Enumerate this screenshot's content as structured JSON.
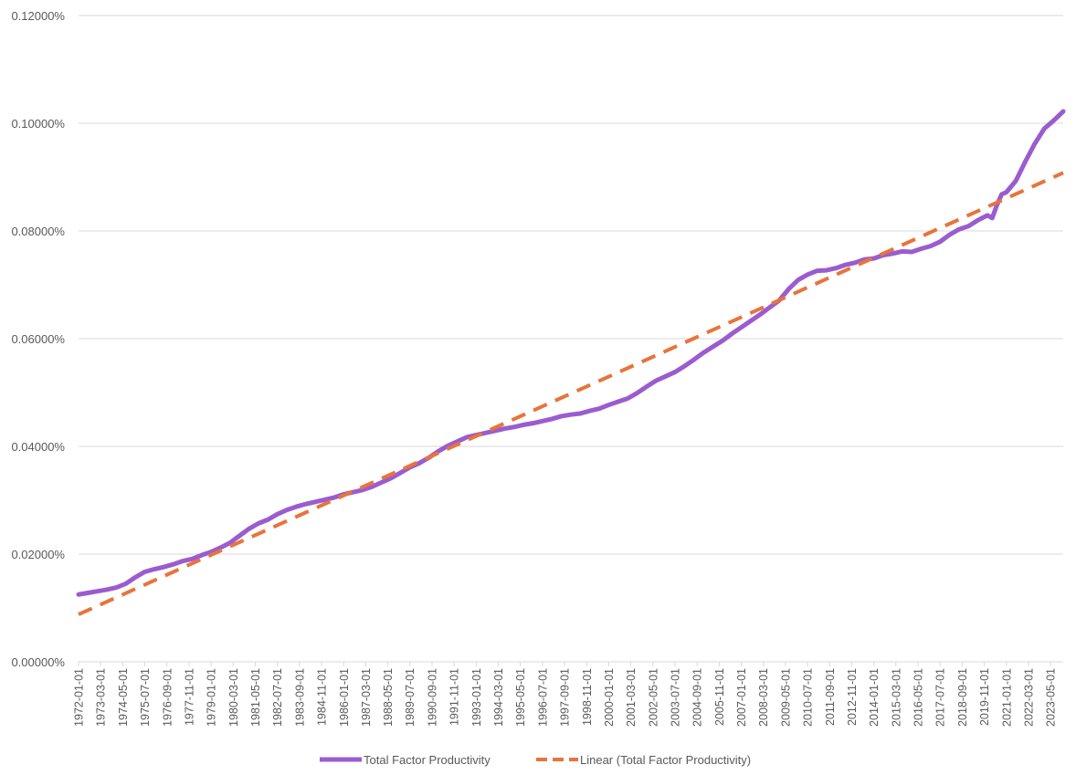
{
  "chart_data": {
    "type": "line",
    "title": "",
    "xlabel": "",
    "ylabel": "",
    "x_start": "1972-01-01",
    "x_end": "2024-01-01",
    "ylim": [
      0.0,
      0.12
    ],
    "grid": true,
    "legend_position": "bottom",
    "y_ticks": [
      "0.00000%",
      "0.02000%",
      "0.04000%",
      "0.06000%",
      "0.08000%",
      "0.10000%",
      "0.12000%"
    ],
    "y_tick_values": [
      0.0,
      0.02,
      0.04,
      0.06,
      0.08,
      0.1,
      0.12
    ],
    "x_ticks": [
      "1972-01-01",
      "1973-03-01",
      "1974-05-01",
      "1975-07-01",
      "1976-09-01",
      "1977-11-01",
      "1979-01-01",
      "1980-03-01",
      "1981-05-01",
      "1982-07-01",
      "1983-09-01",
      "1984-11-01",
      "1986-01-01",
      "1987-03-01",
      "1988-05-01",
      "1989-07-01",
      "1990-09-01",
      "1991-11-01",
      "1993-01-01",
      "1994-03-01",
      "1995-05-01",
      "1996-07-01",
      "1997-09-01",
      "1998-11-01",
      "2000-01-01",
      "2001-03-01",
      "2002-05-01",
      "2003-07-01",
      "2004-09-01",
      "2005-11-01",
      "2007-01-01",
      "2008-03-01",
      "2009-05-01",
      "2010-07-01",
      "2011-09-01",
      "2012-11-01",
      "2014-01-01",
      "2015-03-01",
      "2016-05-01",
      "2017-07-01",
      "2018-09-01",
      "2019-11-01",
      "2021-01-01",
      "2022-03-01",
      "2023-05-01"
    ],
    "series": [
      {
        "name": "Total Factor Productivity",
        "color": "#9a5ccf",
        "style": "solid",
        "points": [
          [
            "1972-01-01",
            0.0125
          ],
          [
            "1972-07-01",
            0.0128
          ],
          [
            "1973-01-01",
            0.0131
          ],
          [
            "1973-07-01",
            0.0134
          ],
          [
            "1974-01-01",
            0.0138
          ],
          [
            "1974-07-01",
            0.0145
          ],
          [
            "1975-01-01",
            0.0157
          ],
          [
            "1975-07-01",
            0.0167
          ],
          [
            "1976-01-01",
            0.0172
          ],
          [
            "1976-07-01",
            0.0176
          ],
          [
            "1977-01-01",
            0.0181
          ],
          [
            "1977-07-01",
            0.0187
          ],
          [
            "1978-01-01",
            0.0191
          ],
          [
            "1978-07-01",
            0.0198
          ],
          [
            "1979-01-01",
            0.0204
          ],
          [
            "1979-07-01",
            0.0212
          ],
          [
            "1980-01-01",
            0.0221
          ],
          [
            "1980-07-01",
            0.0234
          ],
          [
            "1981-01-01",
            0.0247
          ],
          [
            "1981-07-01",
            0.0257
          ],
          [
            "1982-01-01",
            0.0264
          ],
          [
            "1982-07-01",
            0.0274
          ],
          [
            "1983-01-01",
            0.0282
          ],
          [
            "1983-07-01",
            0.0288
          ],
          [
            "1984-01-01",
            0.0293
          ],
          [
            "1984-07-01",
            0.0297
          ],
          [
            "1985-01-01",
            0.0301
          ],
          [
            "1985-07-01",
            0.0305
          ],
          [
            "1986-01-01",
            0.0311
          ],
          [
            "1986-07-01",
            0.0315
          ],
          [
            "1987-01-01",
            0.0319
          ],
          [
            "1987-07-01",
            0.0325
          ],
          [
            "1988-01-01",
            0.0333
          ],
          [
            "1988-07-01",
            0.0341
          ],
          [
            "1989-01-01",
            0.0351
          ],
          [
            "1989-07-01",
            0.0361
          ],
          [
            "1990-01-01",
            0.0369
          ],
          [
            "1990-07-01",
            0.0379
          ],
          [
            "1991-01-01",
            0.0391
          ],
          [
            "1991-07-01",
            0.0401
          ],
          [
            "1992-01-01",
            0.0409
          ],
          [
            "1992-07-01",
            0.0417
          ],
          [
            "1993-01-01",
            0.0421
          ],
          [
            "1993-07-01",
            0.0425
          ],
          [
            "1994-01-01",
            0.0429
          ],
          [
            "1994-07-01",
            0.0433
          ],
          [
            "1995-01-01",
            0.0436
          ],
          [
            "1995-07-01",
            0.044
          ],
          [
            "1996-01-01",
            0.0443
          ],
          [
            "1996-07-01",
            0.0447
          ],
          [
            "1997-01-01",
            0.0451
          ],
          [
            "1997-07-01",
            0.0456
          ],
          [
            "1998-01-01",
            0.0459
          ],
          [
            "1998-07-01",
            0.0461
          ],
          [
            "1999-01-01",
            0.0466
          ],
          [
            "1999-07-01",
            0.047
          ],
          [
            "2000-01-01",
            0.0477
          ],
          [
            "2000-07-01",
            0.0483
          ],
          [
            "2001-01-01",
            0.0489
          ],
          [
            "2001-07-01",
            0.0499
          ],
          [
            "2002-01-01",
            0.0511
          ],
          [
            "2002-07-01",
            0.0522
          ],
          [
            "2003-01-01",
            0.053
          ],
          [
            "2003-07-01",
            0.0538
          ],
          [
            "2004-01-01",
            0.0549
          ],
          [
            "2004-07-01",
            0.0561
          ],
          [
            "2005-01-01",
            0.0574
          ],
          [
            "2005-07-01",
            0.0585
          ],
          [
            "2006-01-01",
            0.0596
          ],
          [
            "2006-07-01",
            0.0609
          ],
          [
            "2007-01-01",
            0.0621
          ],
          [
            "2007-07-01",
            0.0633
          ],
          [
            "2008-01-01",
            0.0645
          ],
          [
            "2008-07-01",
            0.0658
          ],
          [
            "2009-01-01",
            0.0671
          ],
          [
            "2009-07-01",
            0.0692
          ],
          [
            "2010-01-01",
            0.0709
          ],
          [
            "2010-07-01",
            0.0719
          ],
          [
            "2011-01-01",
            0.0726
          ],
          [
            "2011-07-01",
            0.0727
          ],
          [
            "2012-01-01",
            0.0731
          ],
          [
            "2012-07-01",
            0.0737
          ],
          [
            "2013-01-01",
            0.0741
          ],
          [
            "2013-07-01",
            0.0747
          ],
          [
            "2014-01-01",
            0.0749
          ],
          [
            "2014-07-01",
            0.0755
          ],
          [
            "2015-01-01",
            0.0758
          ],
          [
            "2015-07-01",
            0.0762
          ],
          [
            "2016-01-01",
            0.0761
          ],
          [
            "2016-07-01",
            0.0767
          ],
          [
            "2017-01-01",
            0.0772
          ],
          [
            "2017-07-01",
            0.078
          ],
          [
            "2018-01-01",
            0.0793
          ],
          [
            "2018-07-01",
            0.0803
          ],
          [
            "2019-01-01",
            0.0809
          ],
          [
            "2019-07-01",
            0.082
          ],
          [
            "2020-01-01",
            0.0829
          ],
          [
            "2020-04-01",
            0.0824
          ],
          [
            "2020-07-01",
            0.0848
          ],
          [
            "2020-10-01",
            0.0868
          ],
          [
            "2021-01-01",
            0.0872
          ],
          [
            "2021-07-01",
            0.0893
          ],
          [
            "2022-01-01",
            0.0929
          ],
          [
            "2022-07-01",
            0.0962
          ],
          [
            "2023-01-01",
            0.099
          ],
          [
            "2023-07-01",
            0.1005
          ],
          [
            "2024-01-01",
            0.1022
          ]
        ]
      },
      {
        "name": "Linear (Total Factor Productivity)",
        "color": "#e8743b",
        "style": "dashed",
        "points": [
          [
            "1972-01-01",
            0.0088
          ],
          [
            "2024-01-01",
            0.0908
          ]
        ]
      }
    ]
  }
}
